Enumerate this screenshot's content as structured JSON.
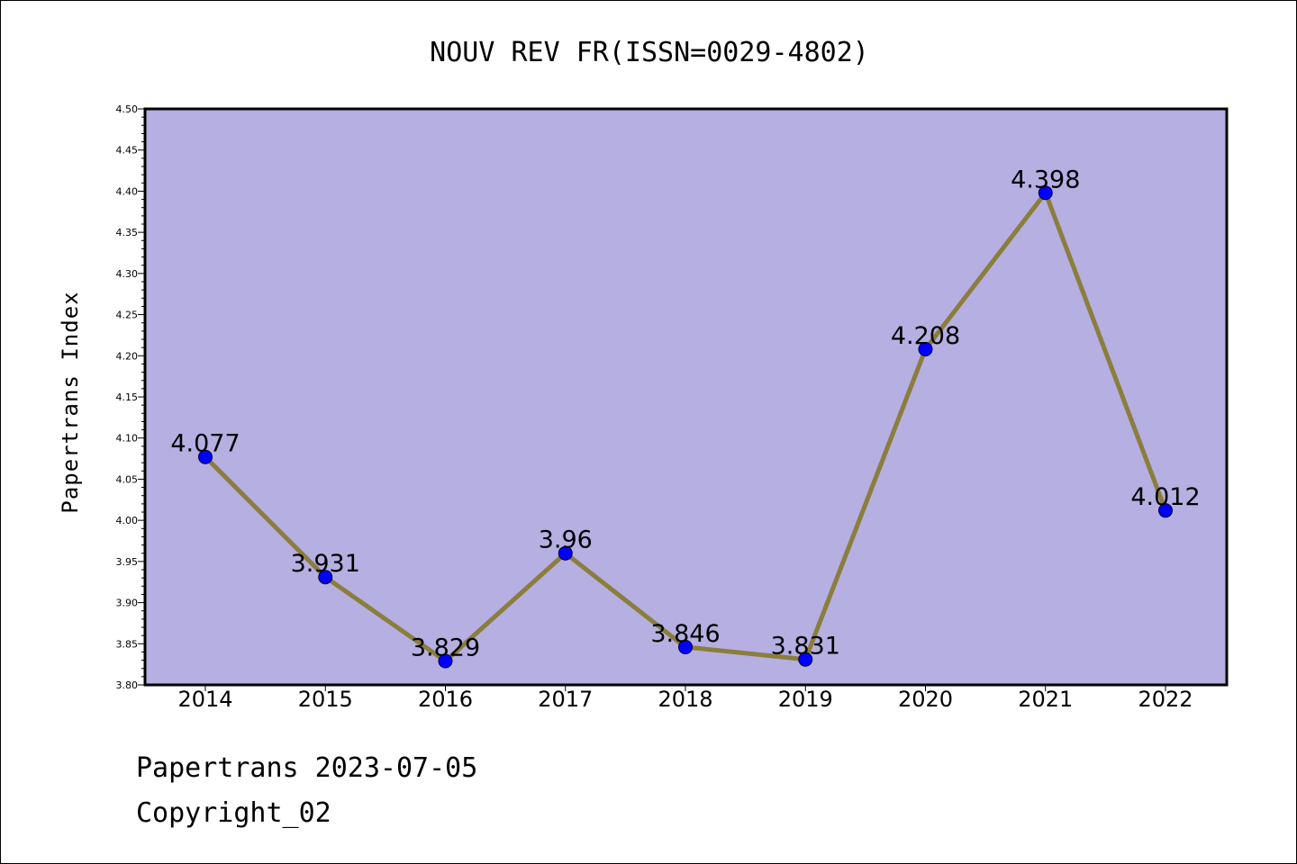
{
  "chart_data": {
    "type": "line",
    "title": "NOUV REV FR(ISSN=0029-4802)",
    "ylabel": "Papertrans Index",
    "xlabel": "",
    "categories": [
      "2014",
      "2015",
      "2016",
      "2017",
      "2018",
      "2019",
      "2020",
      "2021",
      "2022"
    ],
    "values": [
      4.077,
      3.931,
      3.829,
      3.96,
      3.846,
      3.831,
      4.208,
      4.398,
      4.012
    ],
    "data_labels": [
      "4.077",
      "3.931",
      "3.829",
      "3.96",
      "3.846",
      "3.831",
      "4.208",
      "4.398",
      "4.012"
    ],
    "ylim": [
      3.8,
      4.5
    ],
    "yticks": [
      "3.80",
      "3.85",
      "3.90",
      "3.95",
      "4.00",
      "4.05",
      "4.10",
      "4.15",
      "4.20",
      "4.25",
      "4.30",
      "4.35",
      "4.40",
      "4.45",
      "4.50"
    ],
    "grid": false,
    "colors": {
      "plot_background": "#b5afe2",
      "line": "#8b7d3c",
      "marker": "#0000ff"
    }
  },
  "footer": {
    "date_line": "Papertrans 2023-07-05",
    "copyright": "Copyright_02"
  }
}
